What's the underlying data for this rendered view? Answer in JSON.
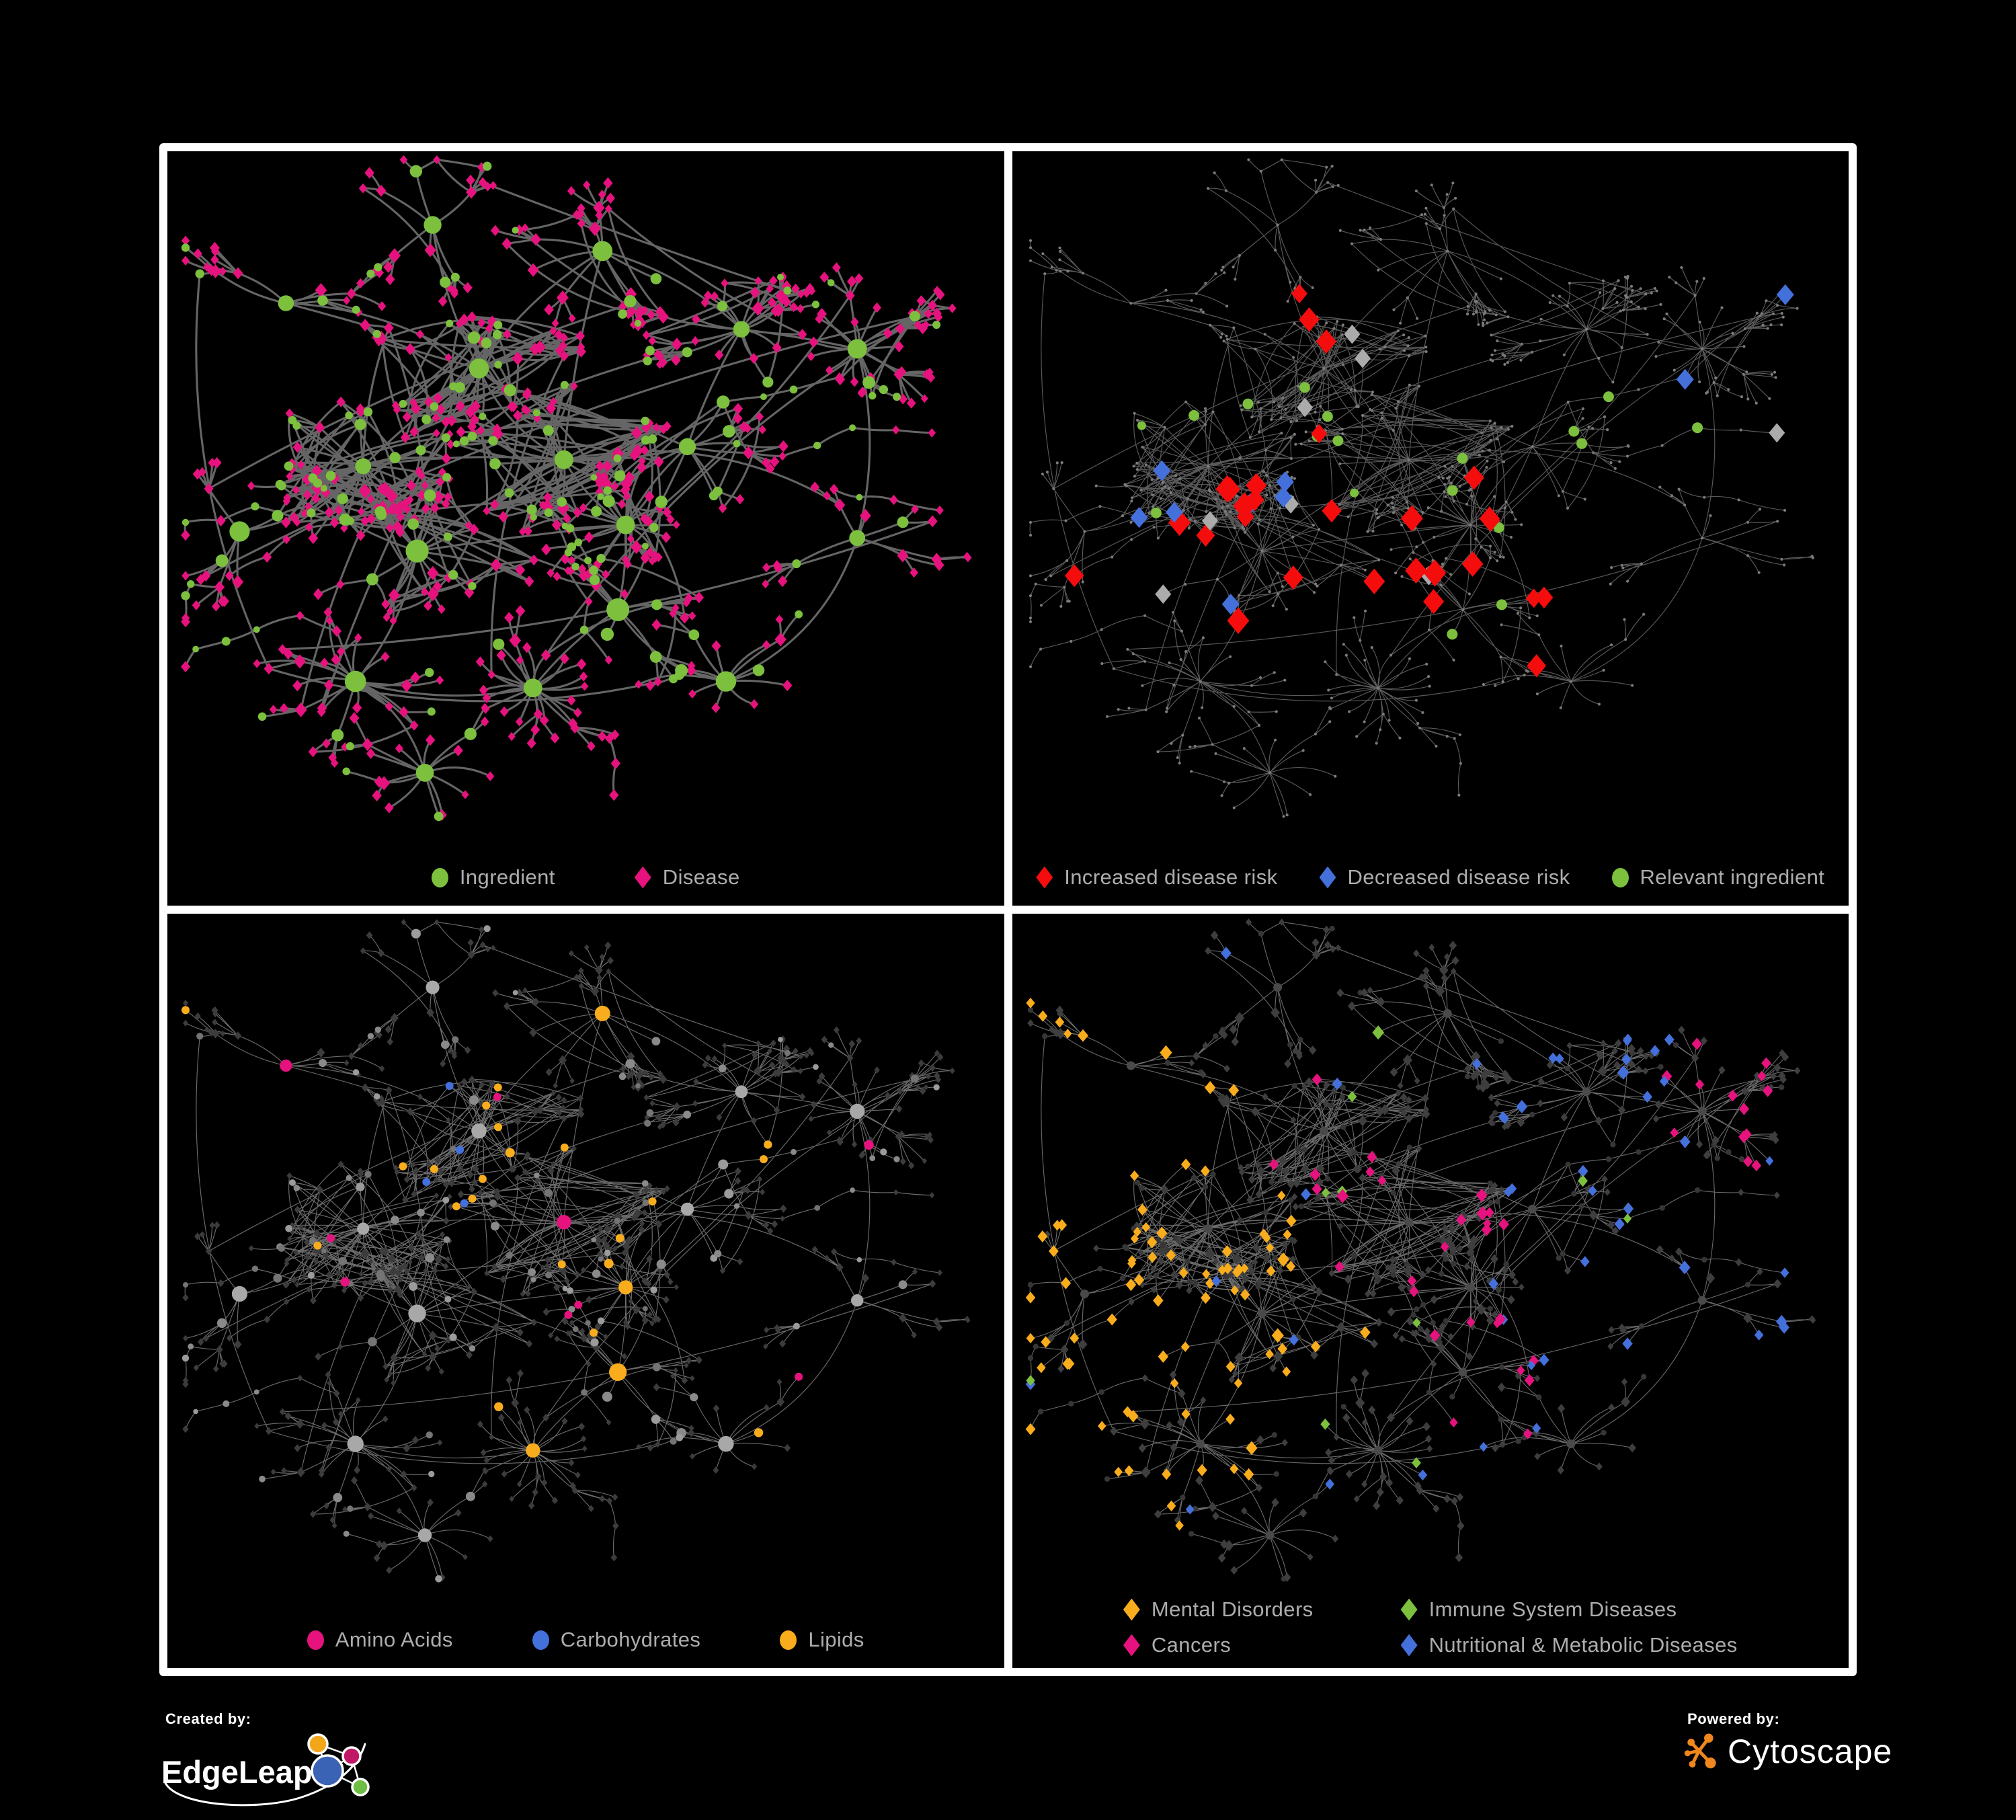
{
  "panels": [
    {
      "id": "ingredient-disease",
      "legend": [
        {
          "label": "Ingredient",
          "shape": "circle",
          "color": "#7CC03E"
        },
        {
          "label": "Disease",
          "shape": "diamond",
          "color": "#E6127E"
        }
      ]
    },
    {
      "id": "disease-risk",
      "legend": [
        {
          "label": "Increased disease risk",
          "shape": "diamond",
          "color": "#F50D0D"
        },
        {
          "label": "Decreased disease risk",
          "shape": "diamond",
          "color": "#4470DC"
        },
        {
          "label": "Relevant ingredient",
          "shape": "circle",
          "color": "#7CC03E"
        }
      ]
    },
    {
      "id": "nutrient-classes",
      "legend": [
        {
          "label": "Amino Acids",
          "shape": "circle",
          "color": "#E6127E"
        },
        {
          "label": "Carbohydrates",
          "shape": "circle",
          "color": "#4470DC"
        },
        {
          "label": "Lipids",
          "shape": "circle",
          "color": "#F9AD1D"
        }
      ]
    },
    {
      "id": "disease-classes",
      "legend": [
        {
          "label": "Mental Disorders",
          "shape": "diamond",
          "color": "#F9AD1D"
        },
        {
          "label": "Immune System Diseases",
          "shape": "diamond",
          "color": "#7CC03E"
        },
        {
          "label": "Cancers",
          "shape": "diamond",
          "color": "#E6127E"
        },
        {
          "label": "Nutritional & Metabolic Diseases",
          "shape": "diamond",
          "color": "#4470DC"
        }
      ]
    }
  ],
  "footer": {
    "created_by": "Created by:",
    "edgeleap": "EdgeLeap",
    "powered_by": "Powered by:",
    "cytoscape": "Cytoscape"
  },
  "chart_data": {
    "type": "network",
    "description": "One ingredient-disease association network drawn four times with different color mappings; circles = ingredients, diamonds = diseases.",
    "layout_hints": {
      "background": "#000000",
      "grid": "2x2",
      "border_color": "#ffffff",
      "legend_text_color": "#ADADAD"
    },
    "panels": [
      {
        "name": "ingredient-vs-disease",
        "node_colors": {
          "ingredient": "#7CC03E",
          "disease": "#E6127E"
        },
        "edge": {
          "color": "#6A6A6A",
          "width": 3.1,
          "opacity": 0.95
        }
      },
      {
        "name": "disease-risk",
        "base_node": "#7B7B7B",
        "highlights": {
          "increased": "#F50D0D",
          "decreased": "#4470DC",
          "neutral": "#ABABAB",
          "ingredient": "#7CC03E"
        },
        "edge": {
          "color": "#646464",
          "width": 1.15,
          "opacity": 0.9
        },
        "mix": {
          "red_core": 0.085,
          "blue_left": 0.06,
          "blue_right_pair": 2,
          "silver": 0.018,
          "green_core": 0.11,
          "green_scatter": 0.018,
          "stray_red": 0.005
        }
      },
      {
        "name": "nutrient-classes",
        "base_circle": "#9B9B9B",
        "base_diamond": "#3C3C3C",
        "highlights": {
          "amino": "#E6127E",
          "carbs": "#4470DC",
          "lipids": "#F9AD1D"
        },
        "edge": {
          "color": "#8F8F8F",
          "width": 1.15,
          "opacity": 0.75
        },
        "mix": {
          "lipids_B": 0.42,
          "lipids_C": 0.3,
          "lipids_E": 0.85,
          "lipids_scatter": 0.05,
          "carbs_B": 0.17,
          "carbs_scatter": 0.02,
          "amino_scatter": 0.045
        }
      },
      {
        "name": "disease-classes",
        "base_node": "#3E3E3E",
        "base_hub": "#4A4A4A",
        "highlights": {
          "mental": "#F9AD1D",
          "immune": "#7CC03E",
          "cancer": "#E6127E",
          "metabolic": "#4470DC"
        },
        "edge": {
          "color": "#7D7D7D",
          "width": 1.1,
          "opacity": 0.85
        },
        "mix": {
          "mental": 0.5,
          "cancer": 0.33,
          "cancer_B": 0.08,
          "cancer_H": 0.4,
          "metabolic_right": 0.2,
          "metabolic_scatter": 0.035,
          "immune": 0.013
        }
      }
    ],
    "generator": {
      "seed": 7,
      "panel_seeds": [
        11,
        23,
        37,
        53
      ],
      "crossLinks": 26,
      "chains": 18,
      "clusters": [
        {
          "id": "K",
          "x": 0.11,
          "y": 0.2,
          "mids": 6,
          "leafMin": 2,
          "leafMax": 6,
          "dense": 0,
          "star": 0
        },
        {
          "id": "N",
          "x": 0.3,
          "y": 0.08,
          "mids": 7,
          "leafMin": 2,
          "leafMax": 7,
          "dense": 4,
          "star": 0
        },
        {
          "id": "J",
          "x": 0.52,
          "y": 0.12,
          "mids": 8,
          "leafMin": 2,
          "leafMax": 7,
          "dense": 6,
          "star": 0
        },
        {
          "id": "B",
          "x": 0.36,
          "y": 0.3,
          "mids": 15,
          "leafMin": 2,
          "leafMax": 5,
          "dense": 55,
          "star": 0
        },
        {
          "id": "A",
          "x": 0.21,
          "y": 0.45,
          "mids": 16,
          "leafMin": 2,
          "leafMax": 6,
          "dense": 70,
          "star": 0
        },
        {
          "id": "C",
          "x": 0.47,
          "y": 0.44,
          "mids": 14,
          "leafMin": 2,
          "leafMax": 5,
          "dense": 50,
          "star": 0
        },
        {
          "id": "D",
          "x": 0.28,
          "y": 0.58,
          "mids": 13,
          "leafMin": 2,
          "leafMax": 5,
          "dense": 40,
          "star": 0
        },
        {
          "id": "P",
          "x": 0.05,
          "y": 0.55,
          "mids": 5,
          "leafMin": 2,
          "leafMax": 5,
          "dense": 0,
          "star": 0
        },
        {
          "id": "S",
          "x": 0.55,
          "y": 0.54,
          "mids": 8,
          "leafMin": 2,
          "leafMax": 6,
          "dense": 6,
          "star": 12
        },
        {
          "id": "O",
          "x": 0.54,
          "y": 0.67,
          "mids": 7,
          "leafMin": 2,
          "leafMax": 6,
          "dense": 5,
          "star": 0
        },
        {
          "id": "E",
          "x": 0.43,
          "y": 0.79,
          "mids": 4,
          "leafMin": 2,
          "leafMax": 4,
          "dense": 0,
          "star": 20
        },
        {
          "id": "I",
          "x": 0.2,
          "y": 0.78,
          "mids": 7,
          "leafMin": 2,
          "leafMax": 6,
          "dense": 3,
          "star": 8
        },
        {
          "id": "R",
          "x": 0.29,
          "y": 0.92,
          "mids": 4,
          "leafMin": 2,
          "leafMax": 5,
          "dense": 0,
          "star": 9
        },
        {
          "id": "F",
          "x": 0.63,
          "y": 0.42,
          "mids": 8,
          "leafMin": 2,
          "leafMax": 6,
          "dense": 8,
          "star": 0
        },
        {
          "id": "G",
          "x": 0.7,
          "y": 0.24,
          "mids": 8,
          "leafMin": 3,
          "leafMax": 7,
          "dense": 5,
          "star": 9
        },
        {
          "id": "H",
          "x": 0.85,
          "y": 0.27,
          "mids": 7,
          "leafMin": 3,
          "leafMax": 8,
          "dense": 5,
          "star": 11
        },
        {
          "id": "M",
          "x": 0.85,
          "y": 0.56,
          "mids": 6,
          "leafMin": 2,
          "leafMax": 6,
          "dense": 0,
          "star": 0
        },
        {
          "id": "L",
          "x": 0.68,
          "y": 0.78,
          "mids": 5,
          "leafMin": 2,
          "leafMax": 6,
          "dense": 0,
          "star": 7
        }
      ],
      "hubLinks": [
        [
          "K",
          "B"
        ],
        [
          "N",
          "B"
        ],
        [
          "J",
          "B"
        ],
        [
          "J",
          "C"
        ],
        [
          "B",
          "A"
        ],
        [
          "B",
          "C"
        ],
        [
          "A",
          "D"
        ],
        [
          "A",
          "P"
        ],
        [
          "C",
          "D"
        ],
        [
          "C",
          "F"
        ],
        [
          "C",
          "S"
        ],
        [
          "D",
          "I"
        ],
        [
          "I",
          "R"
        ],
        [
          "S",
          "O"
        ],
        [
          "O",
          "E"
        ],
        [
          "F",
          "G"
        ],
        [
          "G",
          "H"
        ],
        [
          "F",
          "S"
        ],
        [
          "H",
          "M"
        ],
        [
          "M",
          "L"
        ],
        [
          "O",
          "L"
        ],
        [
          "A",
          "C"
        ],
        [
          "D",
          "S"
        ],
        [
          "E",
          "I"
        ],
        [
          "J",
          "G"
        ]
      ]
    }
  }
}
